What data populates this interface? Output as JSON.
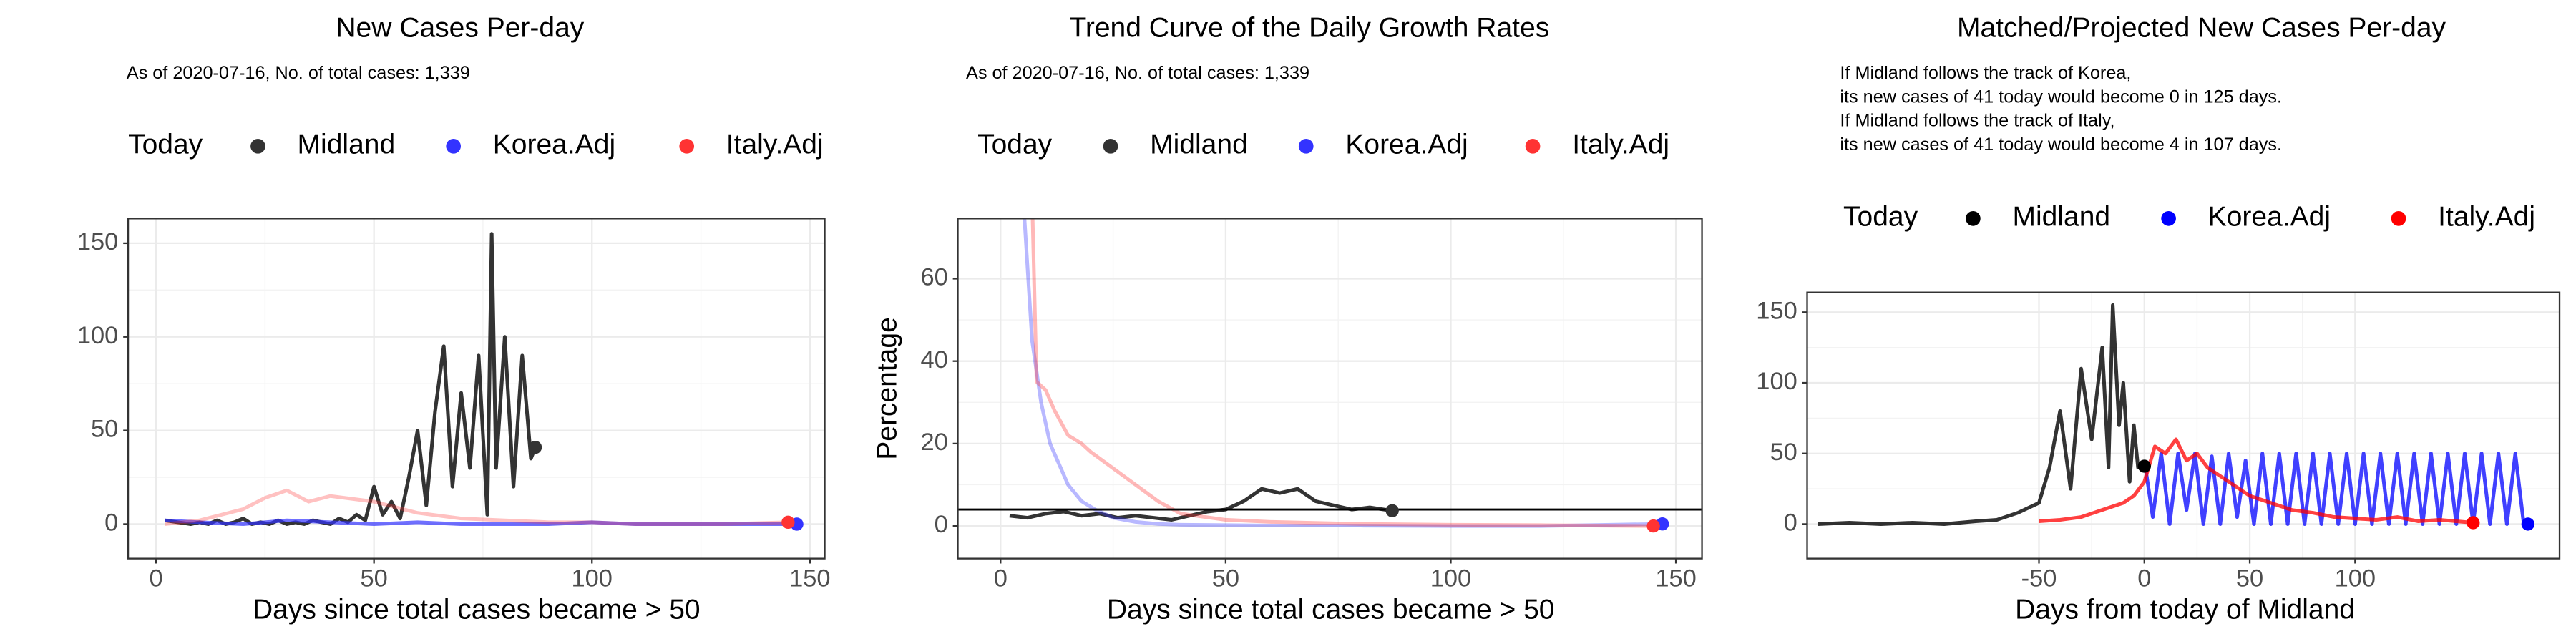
{
  "chart_data": [
    {
      "type": "line",
      "title": "New Cases Per-day",
      "subtitle": "As of 2020-07-16, No. of total cases: 1,339",
      "x_label": "Days since total cases became > 50",
      "legend_title": "Today",
      "xlim": [
        -6.4,
        153.4
      ],
      "ylim": [
        -18.4,
        163.2
      ],
      "xticks": [
        0,
        50,
        100,
        150
      ],
      "yticks": [
        0,
        50,
        100,
        150
      ],
      "grid": true,
      "series": [
        {
          "name": "Midland",
          "color": "#333333",
          "point_color": "#333333",
          "line_alpha": 1,
          "x": [
            2,
            5,
            8,
            10,
            12,
            14,
            16,
            18,
            20,
            22,
            24,
            26,
            28,
            30,
            32,
            34,
            36,
            38,
            40,
            42,
            44,
            46,
            48,
            50,
            52,
            54,
            56,
            58,
            60,
            62,
            64,
            66,
            68,
            70,
            72,
            74,
            76,
            77,
            78,
            80,
            82,
            84,
            86,
            87
          ],
          "values": [
            2,
            1,
            0,
            1,
            0,
            2,
            0,
            1,
            3,
            0,
            1,
            0,
            2,
            0,
            1,
            0,
            2,
            1,
            0,
            3,
            1,
            5,
            2,
            20,
            5,
            12,
            3,
            25,
            50,
            10,
            60,
            95,
            20,
            70,
            30,
            90,
            5,
            155,
            30,
            100,
            20,
            90,
            35,
            41
          ],
          "today": [
            87,
            41
          ]
        },
        {
          "name": "Korea.Adj",
          "color": "#3333ff",
          "point_color": "#3333ff",
          "line_alpha": 0.7,
          "x": [
            2,
            10,
            20,
            30,
            40,
            50,
            60,
            70,
            80,
            90,
            100,
            110,
            120,
            130,
            140,
            147
          ],
          "values": [
            2,
            1,
            0,
            2,
            1,
            0,
            1,
            0,
            0,
            0,
            1,
            0,
            0,
            0,
            0,
            0
          ],
          "today": [
            147,
            0
          ]
        },
        {
          "name": "Italy.Adj",
          "color": "#ff3333",
          "point_color": "#ff3333",
          "line_alpha": 0.3,
          "x": [
            2,
            10,
            20,
            25,
            30,
            35,
            40,
            50,
            60,
            70,
            80,
            90,
            100,
            110,
            120,
            130,
            145
          ],
          "values": [
            0,
            2,
            8,
            14,
            18,
            12,
            15,
            12,
            6,
            3,
            2,
            1,
            1,
            0,
            0,
            0,
            1
          ],
          "today": [
            145,
            1
          ]
        }
      ]
    },
    {
      "type": "line",
      "title": "Trend Curve of the Daily Growth Rates",
      "subtitle": "As of 2020-07-16, No. of total cases: 1,339",
      "x_label": "Days since total cases became > 50",
      "y_label": "Percentage",
      "legend_title": "Today",
      "xlim": [
        -9.5,
        155.8
      ],
      "ylim": [
        -7.9,
        74.6
      ],
      "xticks": [
        0,
        50,
        100,
        150
      ],
      "yticks": [
        0,
        20,
        40,
        60
      ],
      "grid": true,
      "hline": 4,
      "series": [
        {
          "name": "Midland",
          "color": "#333333",
          "point_color": "#333333",
          "line_alpha": 1,
          "x": [
            2,
            6,
            10,
            14,
            18,
            22,
            26,
            30,
            34,
            38,
            42,
            46,
            50,
            54,
            58,
            62,
            66,
            70,
            74,
            78,
            82,
            87
          ],
          "values": [
            2.5,
            2,
            3,
            3.5,
            2.5,
            3,
            2,
            2.5,
            2,
            1.5,
            2.5,
            3.5,
            4,
            6,
            9,
            8,
            9,
            6,
            5,
            4,
            4.5,
            3.7
          ],
          "today": [
            87,
            3.7
          ]
        },
        {
          "name": "Korea.Adj",
          "color": "#3333ff",
          "point_color": "#3333ff",
          "line_alpha": 0.35,
          "x": [
            5,
            7,
            9,
            11,
            13,
            15,
            18,
            21,
            25,
            30,
            35,
            40,
            50,
            60,
            80,
            100,
            120,
            147
          ],
          "values": [
            80,
            45,
            30,
            20,
            15,
            10,
            6,
            4,
            2,
            1,
            0.5,
            0.3,
            0.2,
            0.1,
            0.1,
            0,
            0,
            0.5
          ],
          "today": [
            147,
            0.5
          ]
        },
        {
          "name": "Italy.Adj",
          "color": "#ff3333",
          "point_color": "#ff3333",
          "line_alpha": 0.35,
          "x": [
            7,
            8,
            10,
            12,
            15,
            18,
            20,
            25,
            30,
            35,
            40,
            50,
            60,
            80,
            100,
            120,
            145
          ],
          "values": [
            80,
            35,
            33,
            28,
            22,
            20,
            18,
            14,
            10,
            6,
            3,
            1.5,
            1,
            0.5,
            0.3,
            0.2,
            0
          ],
          "today": [
            145,
            0
          ]
        }
      ]
    },
    {
      "type": "line",
      "title": "Matched/Projected New Cases Per-day",
      "annotation": [
        "If Midland follows the track of Korea,",
        "its new cases of 41 today would become 0 in 125 days.",
        "If Midland follows the track of Italy,",
        "its new cases of 41 today would become 4 in 107 days."
      ],
      "x_label": "Days from today of Midland",
      "legend_title": "Today",
      "xlim": [
        -160,
        197
      ],
      "ylim": [
        -24.4,
        164
      ],
      "xticks": [
        -50,
        0,
        50,
        100
      ],
      "yticks": [
        0,
        50,
        100,
        150
      ],
      "grid": true,
      "series": [
        {
          "name": "Midland",
          "color": "#000000",
          "point_color": "#000000",
          "line_alpha": 0.8,
          "x": [
            -155,
            -140,
            -125,
            -110,
            -95,
            -80,
            -70,
            -60,
            -50,
            -45,
            -40,
            -35,
            -30,
            -25,
            -20,
            -17,
            -15,
            -12,
            -10,
            -7,
            -5,
            -3,
            0
          ],
          "values": [
            0,
            1,
            0,
            1,
            0,
            2,
            3,
            8,
            15,
            40,
            80,
            25,
            110,
            60,
            125,
            40,
            155,
            70,
            100,
            30,
            70,
            40,
            41
          ],
          "today": [
            0,
            41
          ]
        },
        {
          "name": "Korea.Adj",
          "color": "#0000ff",
          "point_color": "#0000ff",
          "line_alpha": 0.75,
          "x": [
            0,
            4,
            8,
            12,
            16,
            20,
            24,
            28,
            32,
            36,
            40,
            44,
            48,
            52,
            56,
            60,
            64,
            68,
            72,
            76,
            80,
            84,
            88,
            92,
            96,
            100,
            104,
            108,
            112,
            116,
            120,
            124,
            128,
            132,
            136,
            140,
            144,
            148,
            152,
            156,
            160,
            164,
            168,
            172,
            176,
            180,
            182
          ],
          "values": [
            45,
            5,
            50,
            0,
            50,
            10,
            50,
            0,
            48,
            0,
            50,
            5,
            45,
            0,
            50,
            0,
            50,
            0,
            50,
            0,
            50,
            0,
            50,
            0,
            50,
            0,
            50,
            0,
            50,
            0,
            50,
            0,
            50,
            0,
            50,
            0,
            50,
            0,
            50,
            0,
            50,
            0,
            50,
            0,
            50,
            0,
            0
          ],
          "today": [
            182,
            0
          ]
        },
        {
          "name": "Italy.Adj",
          "color": "#ff0000",
          "point_color": "#ff0000",
          "line_alpha": 0.75,
          "x": [
            -50,
            -40,
            -30,
            -20,
            -10,
            -5,
            0,
            5,
            10,
            15,
            20,
            25,
            30,
            40,
            50,
            60,
            70,
            80,
            90,
            100,
            110,
            120,
            130,
            140,
            156
          ],
          "values": [
            2,
            3,
            5,
            10,
            15,
            20,
            30,
            55,
            50,
            60,
            45,
            50,
            40,
            30,
            20,
            15,
            10,
            8,
            5,
            4,
            3,
            5,
            2,
            3,
            1
          ],
          "today": [
            156,
            1
          ]
        }
      ]
    }
  ]
}
